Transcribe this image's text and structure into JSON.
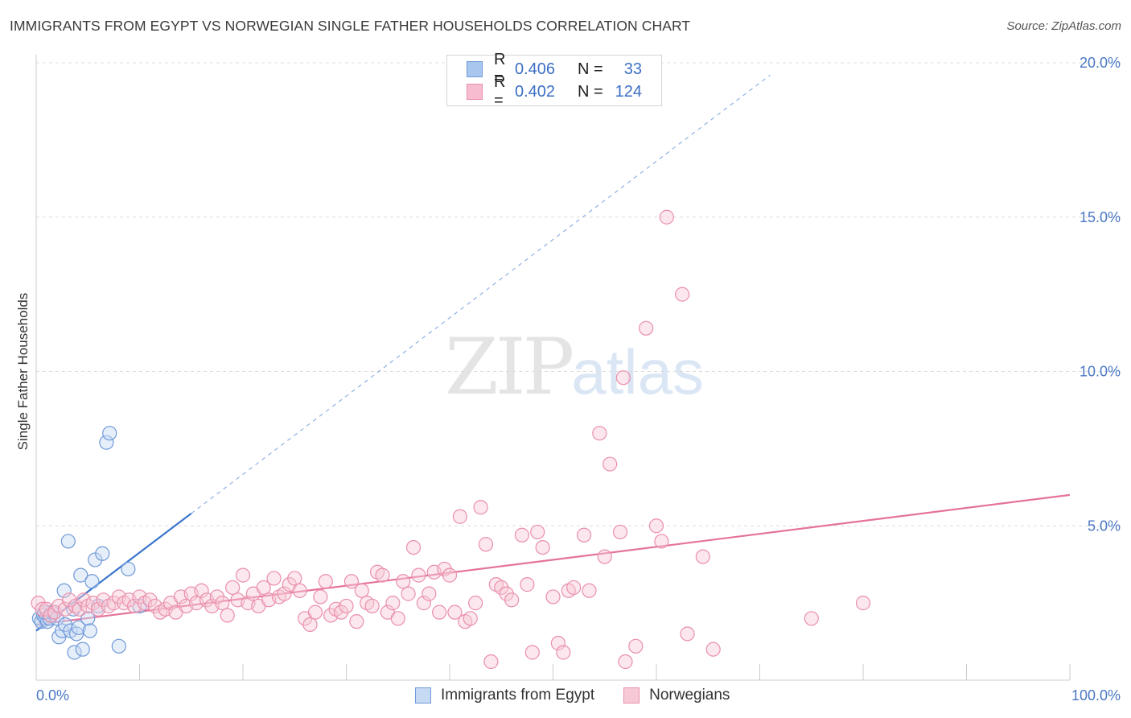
{
  "title": "IMMIGRANTS FROM EGYPT VS NORWEGIAN SINGLE FATHER HOUSEHOLDS CORRELATION CHART",
  "source": "Source: ZipAtlas.com",
  "watermark": {
    "zip": "ZIP",
    "atlas": "atlas"
  },
  "legend": {
    "rows": [
      {
        "r_label": "R =",
        "r_value": "0.406",
        "n_label": "N =",
        "n_value": "33",
        "color": "#a9c6ee",
        "border": "#6f9ad8"
      },
      {
        "r_label": "R =",
        "r_value": "0.402",
        "n_label": "N =",
        "n_value": "124",
        "color": "#f7bccf",
        "border": "#ea8fab"
      }
    ]
  },
  "bottom_legend": {
    "egypt": "Immigrants from Egypt",
    "norwegians": "Norwegians"
  },
  "chart_data": {
    "type": "scatter",
    "title": "IMMIGRANTS FROM EGYPT VS NORWEGIAN SINGLE FATHER HOUSEHOLDS CORRELATION CHART",
    "xlabel": "",
    "ylabel": "Single Father Households",
    "xlim": [
      0,
      100
    ],
    "ylim": [
      0,
      20
    ],
    "x_tick_labels": [
      "0.0%",
      "100.0%"
    ],
    "y_ticks": [
      5,
      10,
      15,
      20
    ],
    "y_tick_labels": [
      "5.0%",
      "10.0%",
      "15.0%",
      "20.0%"
    ],
    "grid": true,
    "series": [
      {
        "name": "Immigrants from Egypt",
        "color": "#6f9ad8",
        "fill": "#c7daf4",
        "trend": {
          "x0": 0,
          "y0": 1.6,
          "x1": 15,
          "y1": 5.4,
          "dashed_to_x": 71,
          "dashed_to_y": 19.6
        },
        "points": [
          [
            0.3,
            2.0
          ],
          [
            0.5,
            1.9
          ],
          [
            0.7,
            2.1
          ],
          [
            0.9,
            2.0
          ],
          [
            1.1,
            1.9
          ],
          [
            1.3,
            2.0
          ],
          [
            1.5,
            2.2
          ],
          [
            1.7,
            2.2
          ],
          [
            2.0,
            2.0
          ],
          [
            2.2,
            1.4
          ],
          [
            2.5,
            1.6
          ],
          [
            2.7,
            2.9
          ],
          [
            2.8,
            1.8
          ],
          [
            3.1,
            4.5
          ],
          [
            3.3,
            1.6
          ],
          [
            3.6,
            2.3
          ],
          [
            3.7,
            0.9
          ],
          [
            3.9,
            1.5
          ],
          [
            4.1,
            1.7
          ],
          [
            4.3,
            3.4
          ],
          [
            4.5,
            1.0
          ],
          [
            5.0,
            2.0
          ],
          [
            5.2,
            1.6
          ],
          [
            5.4,
            3.2
          ],
          [
            5.7,
            3.9
          ],
          [
            6.0,
            2.4
          ],
          [
            6.4,
            4.1
          ],
          [
            6.8,
            7.7
          ],
          [
            7.1,
            8.0
          ],
          [
            8.0,
            1.1
          ],
          [
            8.9,
            3.6
          ],
          [
            10.0,
            2.4
          ],
          [
            0.8,
            2.2
          ]
        ]
      },
      {
        "name": "Norwegians",
        "color": "#ea8fab",
        "fill": "#f7c9d7",
        "trend": {
          "x0": 0,
          "y0": 1.8,
          "x1": 100,
          "y1": 6.0
        },
        "points": [
          [
            0.2,
            2.5
          ],
          [
            0.6,
            2.3
          ],
          [
            1.0,
            2.3
          ],
          [
            1.4,
            2.1
          ],
          [
            1.8,
            2.2
          ],
          [
            2.2,
            2.4
          ],
          [
            2.8,
            2.3
          ],
          [
            3.2,
            2.6
          ],
          [
            3.8,
            2.4
          ],
          [
            4.2,
            2.3
          ],
          [
            4.6,
            2.6
          ],
          [
            5.0,
            2.4
          ],
          [
            5.5,
            2.5
          ],
          [
            6.0,
            2.3
          ],
          [
            6.5,
            2.6
          ],
          [
            7.0,
            2.4
          ],
          [
            7.5,
            2.5
          ],
          [
            8.0,
            2.7
          ],
          [
            8.5,
            2.5
          ],
          [
            9.0,
            2.6
          ],
          [
            9.5,
            2.4
          ],
          [
            10.0,
            2.7
          ],
          [
            10.5,
            2.5
          ],
          [
            11.0,
            2.6
          ],
          [
            11.5,
            2.4
          ],
          [
            12.0,
            2.2
          ],
          [
            12.5,
            2.3
          ],
          [
            13.0,
            2.5
          ],
          [
            13.5,
            2.2
          ],
          [
            14.0,
            2.7
          ],
          [
            14.5,
            2.4
          ],
          [
            15.0,
            2.8
          ],
          [
            15.5,
            2.5
          ],
          [
            16.0,
            2.9
          ],
          [
            16.5,
            2.6
          ],
          [
            17.0,
            2.4
          ],
          [
            17.5,
            2.7
          ],
          [
            18.0,
            2.5
          ],
          [
            18.5,
            2.1
          ],
          [
            19.0,
            3.0
          ],
          [
            19.5,
            2.6
          ],
          [
            20.0,
            3.4
          ],
          [
            20.5,
            2.5
          ],
          [
            21.0,
            2.8
          ],
          [
            21.5,
            2.4
          ],
          [
            22.0,
            3.0
          ],
          [
            22.5,
            2.6
          ],
          [
            23.0,
            3.3
          ],
          [
            23.5,
            2.7
          ],
          [
            24.0,
            2.8
          ],
          [
            24.5,
            3.1
          ],
          [
            25.0,
            3.3
          ],
          [
            25.5,
            2.9
          ],
          [
            26.0,
            2.0
          ],
          [
            26.5,
            1.8
          ],
          [
            27.0,
            2.2
          ],
          [
            27.5,
            2.7
          ],
          [
            28.0,
            3.2
          ],
          [
            28.5,
            2.1
          ],
          [
            29.0,
            2.3
          ],
          [
            29.5,
            2.2
          ],
          [
            30.0,
            2.4
          ],
          [
            30.5,
            3.2
          ],
          [
            31.0,
            1.9
          ],
          [
            31.5,
            2.9
          ],
          [
            32.0,
            2.5
          ],
          [
            32.5,
            2.4
          ],
          [
            33.0,
            3.5
          ],
          [
            33.5,
            3.4
          ],
          [
            34.0,
            2.2
          ],
          [
            34.5,
            2.5
          ],
          [
            35.0,
            2.0
          ],
          [
            35.5,
            3.2
          ],
          [
            36.0,
            2.8
          ],
          [
            36.5,
            4.3
          ],
          [
            37.0,
            3.4
          ],
          [
            37.5,
            2.5
          ],
          [
            38.0,
            2.8
          ],
          [
            38.5,
            3.5
          ],
          [
            39.0,
            2.2
          ],
          [
            39.5,
            3.6
          ],
          [
            40.0,
            3.4
          ],
          [
            40.5,
            2.2
          ],
          [
            41.0,
            5.3
          ],
          [
            41.5,
            1.9
          ],
          [
            42.0,
            2.0
          ],
          [
            42.5,
            2.5
          ],
          [
            43.0,
            5.6
          ],
          [
            43.5,
            4.4
          ],
          [
            44.0,
            0.6
          ],
          [
            44.5,
            3.1
          ],
          [
            45.0,
            3.0
          ],
          [
            45.5,
            2.8
          ],
          [
            46.0,
            2.6
          ],
          [
            47.0,
            4.7
          ],
          [
            47.5,
            3.1
          ],
          [
            48.0,
            0.9
          ],
          [
            48.5,
            4.8
          ],
          [
            49.0,
            4.3
          ],
          [
            50.0,
            2.7
          ],
          [
            50.5,
            1.2
          ],
          [
            51.0,
            0.9
          ],
          [
            51.5,
            2.9
          ],
          [
            52.0,
            3.0
          ],
          [
            53.0,
            4.7
          ],
          [
            53.5,
            2.9
          ],
          [
            54.5,
            8.0
          ],
          [
            55.0,
            4.0
          ],
          [
            55.5,
            7.0
          ],
          [
            56.5,
            4.8
          ],
          [
            56.8,
            9.8
          ],
          [
            57.0,
            0.6
          ],
          [
            58.0,
            1.1
          ],
          [
            59.0,
            11.4
          ],
          [
            60.0,
            5.0
          ],
          [
            60.5,
            4.5
          ],
          [
            61.0,
            15.0
          ],
          [
            62.5,
            12.5
          ],
          [
            63.0,
            1.5
          ],
          [
            64.5,
            4.0
          ],
          [
            65.5,
            1.0
          ],
          [
            80.0,
            2.5
          ],
          [
            75.0,
            2.0
          ]
        ]
      }
    ]
  }
}
